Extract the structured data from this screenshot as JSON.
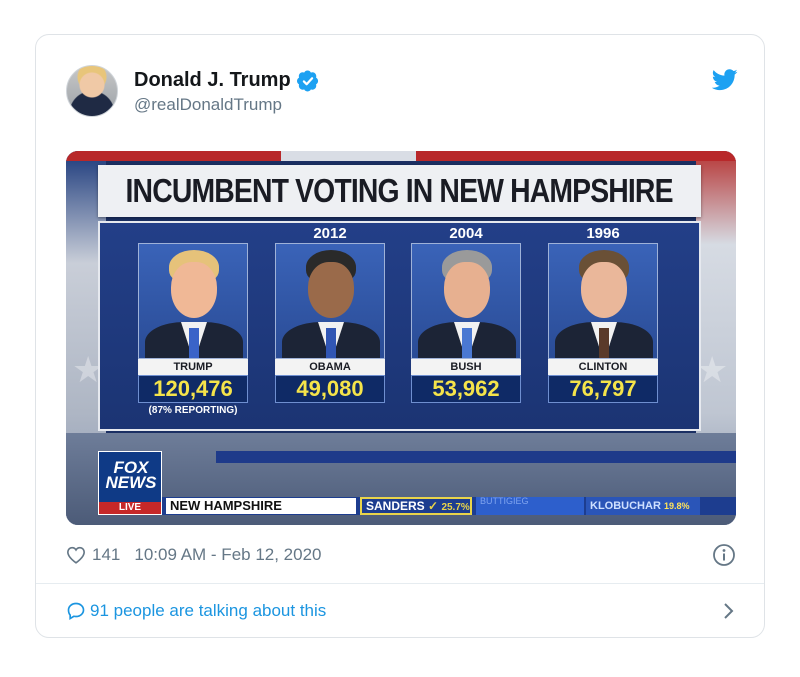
{
  "tweet": {
    "author_name": "Donald J. Trump",
    "handle": "@realDonaldTrump",
    "likes": "141",
    "timestamp": "10:09 AM - Feb 12, 2020",
    "talking": "91 people are talking about this",
    "accent_color": "#1da1f2",
    "link_color": "#1b95e0"
  },
  "media": {
    "title": "INCUMBENT VOTING IN NEW HAMPSHIRE",
    "candidates": [
      {
        "year": "",
        "name": "TRUMP",
        "votes": "120,476"
      },
      {
        "year": "2012",
        "name": "OBAMA",
        "votes": "49,080"
      },
      {
        "year": "2004",
        "name": "BUSH",
        "votes": "53,962"
      },
      {
        "year": "1996",
        "name": "CLINTON",
        "votes": "76,797"
      }
    ],
    "reporting": "(87% REPORTING)",
    "fox_logo": "FOX NEWS",
    "live": "LIVE",
    "ticker_state": "NEW HAMPSHIRE",
    "ticker_sanders": "SANDERS",
    "ticker_sanders_pct": "25.7%",
    "ticker_klobuchar": "KLOBUCHAR",
    "ticker_klobuchar_pct": "19.8%",
    "ticker_blurred": "BUTTIGIEG"
  },
  "icons": [
    "verified-badge-icon",
    "twitter-bird-icon",
    "heart-icon",
    "info-icon",
    "comment-bubble-icon",
    "chevron-right-icon"
  ]
}
